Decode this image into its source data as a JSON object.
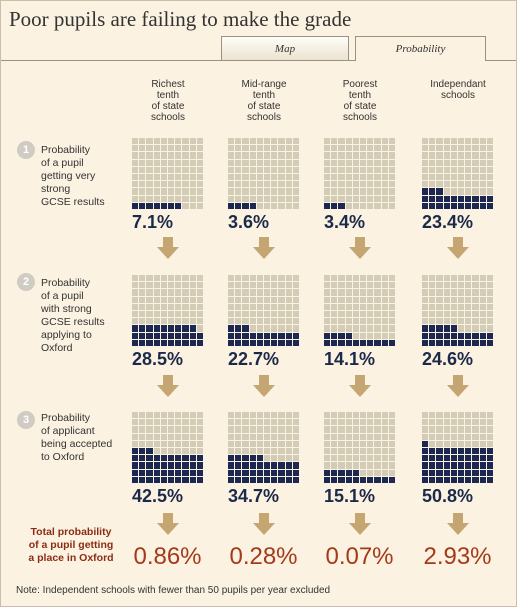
{
  "title": "Poor pupils are failing to make the grade",
  "tabs": [
    {
      "label": "Map",
      "active": false
    },
    {
      "label": "Probability",
      "active": true
    }
  ],
  "colors": {
    "filled": "#1c2752",
    "empty": "#d3ccb6",
    "arrow": "#c5a673",
    "total": "#a33a1a",
    "background": "#fbf2e1"
  },
  "chart_data": {
    "type": "waffle",
    "columns": [
      [
        "Richest",
        "tenth",
        "of state",
        "schools"
      ],
      [
        "Mid-range",
        "tenth",
        "of state",
        "schools"
      ],
      [
        "Poorest",
        "tenth",
        "of state",
        "schools"
      ],
      [
        "Independant",
        "schools"
      ]
    ],
    "steps": [
      {
        "number": "1",
        "label": [
          "Probability",
          "of a pupil",
          "getting very",
          "strong",
          "GCSE results"
        ],
        "values": [
          7.1,
          3.6,
          3.4,
          23.4
        ],
        "labels": [
          "7.1%",
          "3.6%",
          "3.4%",
          "23.4%"
        ]
      },
      {
        "number": "2",
        "label": [
          "Probability",
          "of a pupil",
          "with strong",
          "GCSE results",
          "applying to",
          "Oxford"
        ],
        "values": [
          28.5,
          22.7,
          14.1,
          24.6
        ],
        "labels": [
          "28.5%",
          "22.7%",
          "14.1%",
          "24.6%"
        ]
      },
      {
        "number": "3",
        "label": [
          "Probability",
          "of applicant",
          "being accepted",
          "to Oxford"
        ],
        "values": [
          42.5,
          34.7,
          15.1,
          50.8
        ],
        "labels": [
          "42.5%",
          "34.7%",
          "15.1%",
          "50.8%"
        ]
      }
    ],
    "total": {
      "label": [
        "Total probability",
        "of a pupil getting",
        "a place in Oxford"
      ],
      "values": [
        0.86,
        0.28,
        0.07,
        2.93
      ],
      "labels": [
        "0.86%",
        "0.28%",
        "0.07%",
        "2.93%"
      ]
    }
  },
  "note": "Note:  Independent schools with fewer than 50 pupils per year excluded"
}
